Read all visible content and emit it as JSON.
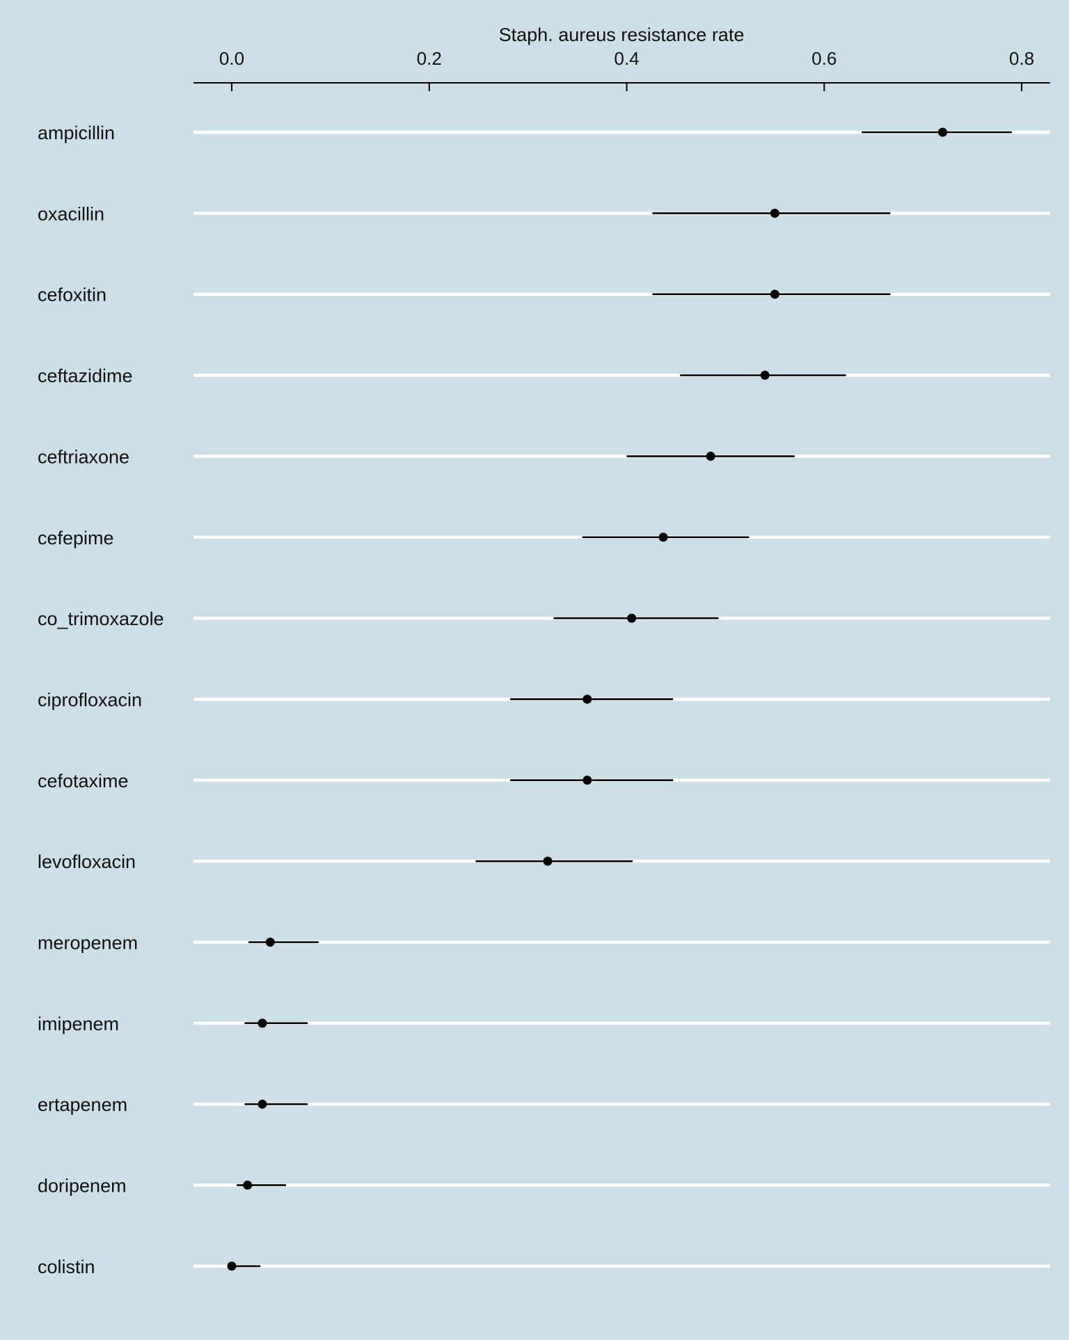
{
  "chart_data": {
    "type": "dot-interval",
    "title": "",
    "xlabel": "Staph. aureus resistance rate",
    "ylabel": "",
    "x_axis_position": "top",
    "xlim": [
      -0.04,
      0.83
    ],
    "xticks": [
      0.0,
      0.2,
      0.4,
      0.6,
      0.8
    ],
    "xtick_labels": [
      "0.0",
      "0.2",
      "0.4",
      "0.6",
      "0.8"
    ],
    "grid": "horizontal",
    "colors": {
      "background": "#cddfe6",
      "gridline": "#ffffff",
      "marks": "#000000"
    },
    "categories": [
      "ampicillin",
      "oxacillin",
      "cefoxitin",
      "ceftazidime",
      "ceftriaxone",
      "cefepime",
      "co_trimoxazole",
      "ciprofloxacin",
      "cefotaxime",
      "levofloxacin",
      "meropenem",
      "imipenem",
      "ertapenem",
      "doripenem",
      "colistin"
    ],
    "series": [
      {
        "name": "resistance rate",
        "values": [
          0.72,
          0.55,
          0.55,
          0.54,
          0.485,
          0.437,
          0.405,
          0.36,
          0.36,
          0.32,
          0.039,
          0.031,
          0.031,
          0.016,
          0.0
        ],
        "lower": [
          0.638,
          0.426,
          0.426,
          0.454,
          0.4,
          0.355,
          0.326,
          0.282,
          0.282,
          0.247,
          0.017,
          0.013,
          0.013,
          0.005,
          0.0
        ],
        "upper": [
          0.79,
          0.667,
          0.667,
          0.622,
          0.57,
          0.524,
          0.493,
          0.447,
          0.447,
          0.406,
          0.088,
          0.077,
          0.077,
          0.055,
          0.029
        ]
      }
    ]
  }
}
